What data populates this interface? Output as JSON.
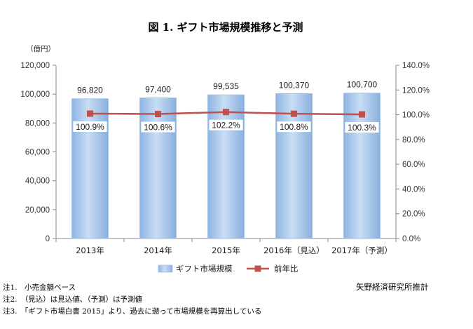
{
  "chart_data": {
    "type": "bar",
    "title": "図 1. ギフト市場規模推移と予測",
    "ylabel": "（億円）",
    "categories": [
      "2013年",
      "2014年",
      "2015年",
      "2016年（見込）",
      "2017年（予測）"
    ],
    "series": [
      {
        "name": "ギフト市場規模",
        "type": "bar",
        "axis": "left",
        "color": "#C9DDF4",
        "values": [
          96820,
          97400,
          99535,
          100370,
          100700
        ],
        "data_labels": [
          "96,820",
          "97,400",
          "99,535",
          "100,370",
          "100,700"
        ]
      },
      {
        "name": "前年比",
        "type": "line",
        "axis": "right",
        "marker": "square",
        "color": "#C0504D",
        "values": [
          100.9,
          100.6,
          102.2,
          100.8,
          100.3
        ],
        "data_labels": [
          "100.9%",
          "100.6%",
          "102.2%",
          "100.8%",
          "100.3%"
        ]
      }
    ],
    "ylim": [
      0,
      120000
    ],
    "yticks": {
      "values": [
        0,
        20000,
        40000,
        60000,
        80000,
        100000,
        120000
      ],
      "labels": [
        "0",
        "20,000",
        "40,000",
        "60,000",
        "80,000",
        "100,000",
        "120,000"
      ]
    },
    "y2lim": [
      0,
      140
    ],
    "y2ticks": {
      "values": [
        0,
        20,
        40,
        60,
        80,
        100,
        120,
        140
      ],
      "labels": [
        "0.0%",
        "20.0%",
        "40.0%",
        "60.0%",
        "80.0%",
        "100.0%",
        "120.0%",
        "140.0%"
      ]
    },
    "grid": false,
    "legend": "bottom-center"
  },
  "notes": [
    "注1.　小売金額ベース",
    "注2.　（見込）は見込値、（予測）は予測値",
    "注3.　「ギフト市場白書 2015」より、過去に遡って市場規模を再算出している"
  ],
  "credit": "矢野経済研究所推計"
}
